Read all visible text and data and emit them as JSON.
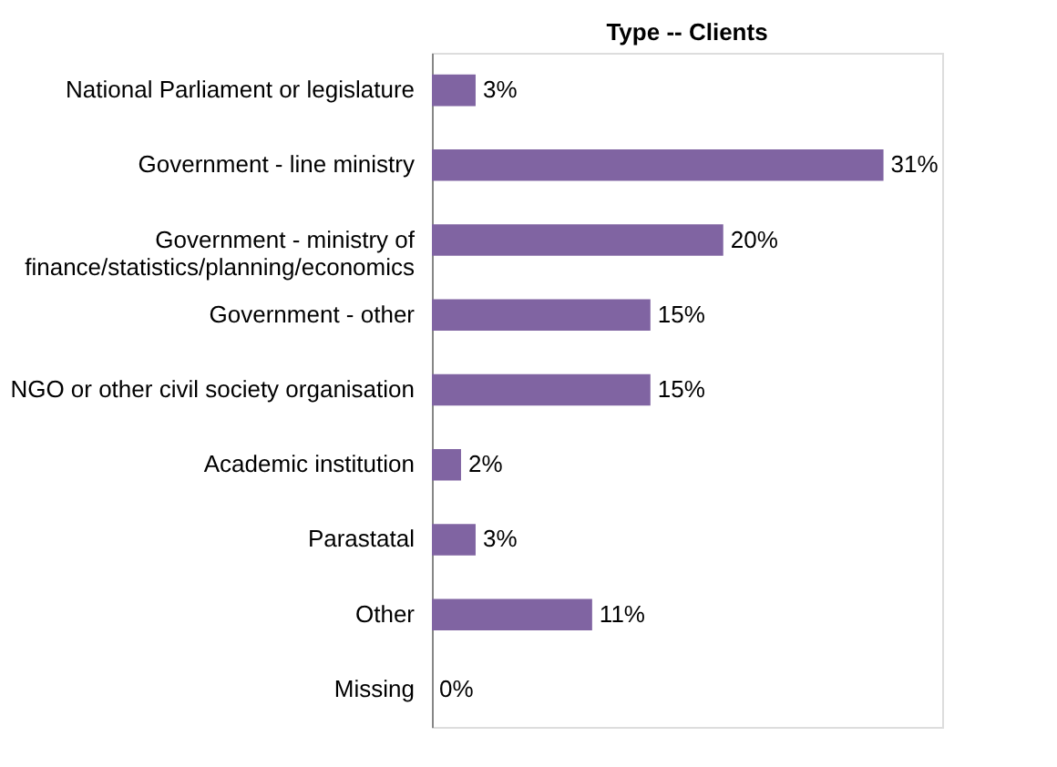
{
  "chart_data": {
    "type": "bar",
    "orientation": "horizontal",
    "title": "Type -- Clients",
    "categories": [
      "National Parliament or legislature",
      "Government - line ministry",
      "Government - ministry of\nfinance/statistics/planning/economics",
      "Government - other",
      "NGO or other civil society organisation",
      "Academic institution",
      "Parastatal",
      "Other",
      "Missing"
    ],
    "values": [
      3,
      31,
      20,
      15,
      15,
      2,
      3,
      11,
      0
    ],
    "value_labels": [
      "3%",
      "31%",
      "20%",
      "15%",
      "15%",
      "2%",
      "3%",
      "11%",
      "0%"
    ],
    "color": "#8064a2",
    "grid": false,
    "tick_labels": "y"
  }
}
